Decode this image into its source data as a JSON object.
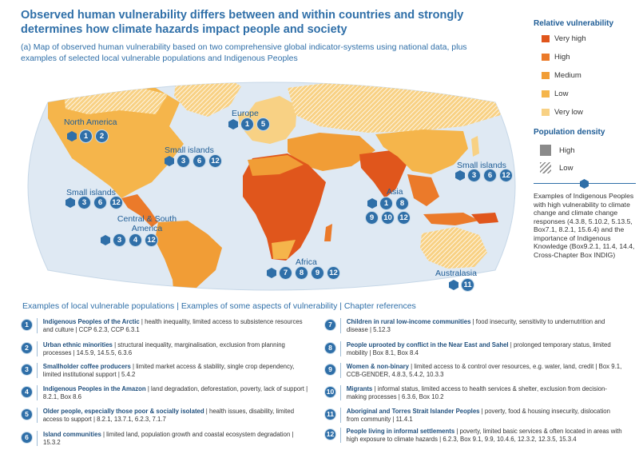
{
  "title": "Observed human vulnerability differs between and within countries and strongly determines how climate hazards impact people and society",
  "subtitle": "(a) Map of observed human vulnerability based on two comprehensive global indicator-systems using national data, plus examples of selected local vulnerable populations and Indigenous Peoples",
  "colors": {
    "very_high": "#e0561c",
    "high": "#eb7a2a",
    "medium": "#f19d36",
    "low": "#f5b54b",
    "very_low": "#f8d184",
    "accent": "#2f6fa8"
  },
  "legend": {
    "vulnerability_title": "Relative vulnerability",
    "levels": [
      "Very high",
      "High",
      "Medium",
      "Low",
      "Very low"
    ],
    "density_title": "Population density",
    "density_levels": [
      "High",
      "Low"
    ],
    "example_text": "Examples of Indigenous Peoples with high vulnerability to climate change and climate change responses (4.3.8, 5.10.2, 5.13.5, Box7.1, 8.2.1, 15.6.4) and the importance of Indigenous Knowledge (Box9.2.1, 11.4, 14.4, Cross-Chapter Box INDIG)"
  },
  "regions": [
    {
      "label": "North America",
      "numbers": [
        "1",
        "2"
      ]
    },
    {
      "label": "Europe",
      "numbers": [
        "1",
        "5"
      ]
    },
    {
      "label": "Small islands",
      "numbers": [
        "3",
        "6",
        "12"
      ]
    },
    {
      "label": "Small islands",
      "numbers": [
        "3",
        "6",
        "12"
      ]
    },
    {
      "label": "Small islands",
      "numbers": [
        "3",
        "6",
        "12"
      ]
    },
    {
      "label": "Asia",
      "numbers": [
        "1",
        "8",
        "9",
        "10",
        "12"
      ]
    },
    {
      "label": "Central & South America",
      "numbers": [
        "3",
        "4",
        "12"
      ]
    },
    {
      "label": "Africa",
      "numbers": [
        "7",
        "8",
        "9",
        "12"
      ]
    },
    {
      "label": "Australasia",
      "numbers": [
        "11"
      ]
    }
  ],
  "populations_header": "Examples of local vulnerable populations | Examples of some aspects of vulnerability | Chapter references",
  "populations": [
    {
      "n": "1",
      "name": "Indigenous Peoples of the Arctic",
      "text": " | health inequality, limited access to subsistence resources and culture | CCP 6.2.3, CCP 6.3.1"
    },
    {
      "n": "2",
      "name": "Urban ethnic minorities",
      "text": " | structural inequality, marginalisation, exclusion from planning processes | 14.5.9, 14.5.5, 6.3.6"
    },
    {
      "n": "3",
      "name": "Smallholder coffee producers",
      "text": " | limited market access & stability, single crop dependency, limited institutional support | 5.4.2"
    },
    {
      "n": "4",
      "name": "Indigenous Peoples in the Amazon",
      "text": " | land degradation, deforestation, poverty, lack of support | 8.2.1, Box 8.6"
    },
    {
      "n": "5",
      "name": "Older people, especially those poor & socially isolated",
      "text": " | health issues, disability, limited access to support | 8.2.1, 13.7.1, 6.2.3, 7.1.7"
    },
    {
      "n": "6",
      "name": "Island communities",
      "text": " | limited land, population growth and coastal ecosystem degradation | 15.3.2"
    },
    {
      "n": "7",
      "name": "Children in rural low-income communities",
      "text": " | food insecurity, sensitivity to undernutrition and disease | 5.12.3"
    },
    {
      "n": "8",
      "name": "People uprooted by conflict in the Near East and Sahel",
      "text": " | prolonged temporary status, limited mobility | Box 8.1, Box 8.4"
    },
    {
      "n": "9",
      "name": "Women & non-binary",
      "text": " | limited access to & control over resources, e.g. water, land, credit | Box 9.1, CCB-GENDER, 4.8.3, 5.4.2, 10.3.3"
    },
    {
      "n": "10",
      "name": "Migrants",
      "text": " | informal status, limited access to health services & shelter, exclusion from decision-making processes | 6.3.6, Box 10.2"
    },
    {
      "n": "11",
      "name": "Aboriginal and Torres Strait Islander Peoples",
      "text": " | poverty, food & housing insecurity, dislocation from community | 11.4.1"
    },
    {
      "n": "12",
      "name": "People living in informal settlements",
      "text": " | poverty, limited basic services & often located in areas with high exposure to climate hazards | 6.2.3, Box 9.1, 9.9, 10.4.6, 12.3.2, 12.3.5, 15.3.4"
    }
  ]
}
